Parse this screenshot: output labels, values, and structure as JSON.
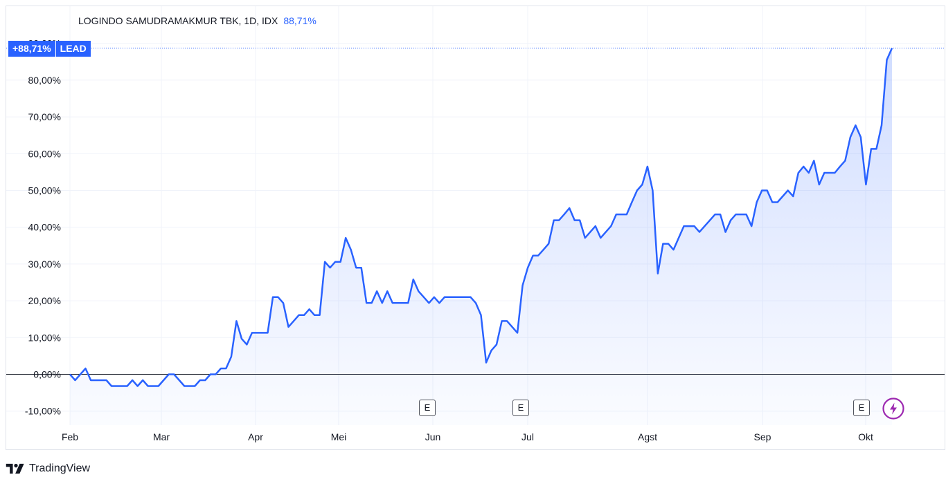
{
  "legend": {
    "symbol": "LOGINDO SAMUDRAMAKMUR TBK, 1D, IDX",
    "value": "88,71%"
  },
  "badge": {
    "value": "+88,71%",
    "label": "LEAD"
  },
  "markers": [
    {
      "label": "E",
      "month": "Jun"
    },
    {
      "label": "E",
      "month": "Jul"
    },
    {
      "label": "E",
      "month": "Okt"
    }
  ],
  "footer": {
    "brand": "TradingView",
    "logo_icon": "tradingview-logo-icon"
  },
  "colors": {
    "line": "#2962ff",
    "badge": "#2962ff",
    "alert": "#9c27b0"
  },
  "chart_data": {
    "type": "area",
    "title": "LOGINDO SAMUDRAMAKMUR TBK, 1D, IDX",
    "xlabel": "",
    "ylabel": "",
    "x_tick_labels": [
      "Feb",
      "Mar",
      "Apr",
      "Mei",
      "Jun",
      "Jul",
      "Agst",
      "Sep",
      "Okt"
    ],
    "y_tick_labels": [
      "-10,00%",
      "0,00%",
      "10,00%",
      "20,00%",
      "30,00%",
      "40,00%",
      "50,00%",
      "60,00%",
      "70,00%",
      "80,00%",
      "90,00%"
    ],
    "y_ticks": [
      -10,
      0,
      10,
      20,
      30,
      40,
      50,
      60,
      70,
      80,
      90
    ],
    "ylim": [
      -10,
      90
    ],
    "grid": true,
    "series": [
      {
        "name": "LOGINDO SAMUDRAMAKMUR TBK",
        "values": [
          0,
          -1.6,
          0,
          1.6,
          -1.6,
          -1.6,
          -1.6,
          -1.6,
          -3.2,
          -3.2,
          -3.2,
          -3.2,
          -1.6,
          -3.2,
          -1.6,
          -3.2,
          -3.2,
          -3.2,
          -1.6,
          0,
          0,
          -1.6,
          -3.2,
          -3.2,
          -3.2,
          -1.6,
          -1.6,
          0,
          0,
          1.6,
          1.6,
          4.8,
          14.5,
          9.7,
          8.1,
          11.3,
          11.3,
          11.3,
          11.3,
          21,
          21,
          19.4,
          12.9,
          14.5,
          16.1,
          16.1,
          17.7,
          16.1,
          16.1,
          30.6,
          29,
          30.6,
          30.6,
          37.1,
          33.9,
          29,
          29,
          19.4,
          19.4,
          22.6,
          19.4,
          22.6,
          19.4,
          19.4,
          19.4,
          19.4,
          25.8,
          22.6,
          21,
          19.4,
          21,
          19.4,
          21,
          21,
          21,
          21,
          21,
          21,
          19.4,
          16.1,
          3.2,
          6.5,
          8.1,
          14.5,
          14.5,
          12.9,
          11.3,
          24.2,
          29,
          32.3,
          32.3,
          33.9,
          35.5,
          41.9,
          41.9,
          43.5,
          45.2,
          41.9,
          41.9,
          37.1,
          38.7,
          40.3,
          37.1,
          38.7,
          40.3,
          43.5,
          43.5,
          43.5,
          46.8,
          50,
          51.6,
          56.5,
          50,
          27.4,
          35.5,
          35.5,
          33.9,
          37.1,
          40.3,
          40.3,
          40.3,
          38.7,
          40.3,
          41.9,
          43.5,
          43.5,
          38.7,
          41.9,
          43.5,
          43.5,
          43.5,
          40.3,
          46.8,
          50,
          50,
          46.8,
          46.8,
          48.4,
          50,
          48.4,
          54.8,
          56.5,
          54.8,
          58.1,
          51.6,
          54.8,
          54.8,
          54.8,
          56.5,
          58.1,
          64.5,
          67.7,
          64.5,
          51.6,
          61.3,
          61.3,
          67.7,
          85.5,
          88.71
        ]
      }
    ],
    "last_value": 88.71
  }
}
